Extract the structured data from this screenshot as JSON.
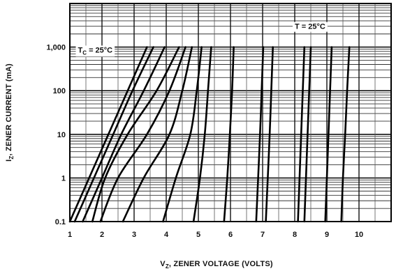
{
  "chart_data": {
    "type": "line",
    "title": "",
    "xlabel_prefix": "V",
    "xlabel_sub": "Z",
    "xlabel_rest": ", ZENER VOLTAGE (VOLTS)",
    "ylabel_prefix": "I",
    "ylabel_sub": "Z",
    "ylabel_rest": ", ZENER CURRENT (mA)",
    "x_scale": "linear",
    "y_scale": "log",
    "xlim": [
      1,
      11
    ],
    "ylim": [
      0.1,
      10000
    ],
    "x_ticks": [
      "1",
      "2",
      "3",
      "4",
      "5",
      "6",
      "7",
      "8",
      "9",
      "10"
    ],
    "y_ticks": [
      "0.1",
      "1",
      "10",
      "100",
      "1,000"
    ],
    "y_tick_values": [
      0.1,
      1,
      10,
      100,
      1000
    ],
    "grid": true,
    "annotations": [
      {
        "prefix": "T",
        "sub": "C",
        "rest": " = 25°C",
        "x": 1.25,
        "y": 750
      },
      {
        "prefix": "T = 25°C",
        "sub": "",
        "rest": "",
        "x": 8.0,
        "y": 2600
      }
    ],
    "series": [
      {
        "points": [
          [
            1.0,
            0.1
          ],
          [
            1.6,
            1
          ],
          [
            2.2,
            10
          ],
          [
            2.8,
            100
          ],
          [
            3.4,
            1000
          ]
        ]
      },
      {
        "points": [
          [
            1.15,
            0.1
          ],
          [
            1.75,
            1
          ],
          [
            2.35,
            10
          ],
          [
            2.95,
            100
          ],
          [
            3.6,
            1000
          ]
        ]
      },
      {
        "points": [
          [
            1.4,
            0.1
          ],
          [
            2.0,
            1
          ],
          [
            2.6,
            10
          ],
          [
            3.3,
            100
          ],
          [
            3.95,
            1000
          ]
        ]
      },
      {
        "points": [
          [
            1.7,
            0.1
          ],
          [
            2.1,
            1
          ],
          [
            2.8,
            10
          ],
          [
            3.7,
            100
          ],
          [
            4.4,
            1000
          ]
        ]
      },
      {
        "points": [
          [
            1.95,
            0.1
          ],
          [
            2.5,
            1
          ],
          [
            3.4,
            10
          ],
          [
            4.1,
            100
          ],
          [
            4.6,
            1000
          ]
        ]
      },
      {
        "points": [
          [
            2.65,
            0.1
          ],
          [
            3.3,
            1
          ],
          [
            4.1,
            10
          ],
          [
            4.5,
            100
          ],
          [
            4.8,
            1000
          ]
        ]
      },
      {
        "points": [
          [
            3.9,
            0.1
          ],
          [
            4.3,
            1
          ],
          [
            4.75,
            10
          ],
          [
            4.95,
            100
          ],
          [
            5.1,
            1000
          ]
        ]
      },
      {
        "points": [
          [
            4.85,
            0.1
          ],
          [
            5.05,
            1
          ],
          [
            5.2,
            10
          ],
          [
            5.3,
            100
          ],
          [
            5.4,
            1000
          ]
        ]
      },
      {
        "points": [
          [
            5.8,
            0.1
          ],
          [
            5.9,
            1
          ],
          [
            5.98,
            10
          ],
          [
            6.05,
            100
          ],
          [
            6.1,
            1000
          ]
        ]
      },
      {
        "points": [
          [
            6.8,
            0.1
          ],
          [
            6.86,
            1
          ],
          [
            6.92,
            10
          ],
          [
            6.97,
            100
          ],
          [
            7.02,
            1000
          ]
        ]
      },
      {
        "points": [
          [
            7.1,
            0.1
          ],
          [
            7.16,
            1
          ],
          [
            7.22,
            10
          ],
          [
            7.27,
            100
          ],
          [
            7.32,
            1000
          ]
        ]
      },
      {
        "points": [
          [
            8.1,
            0.1
          ],
          [
            8.15,
            1
          ],
          [
            8.2,
            10
          ],
          [
            8.25,
            100
          ],
          [
            8.3,
            1000
          ]
        ]
      },
      {
        "points": [
          [
            8.3,
            0.1
          ],
          [
            8.35,
            1
          ],
          [
            8.4,
            10
          ],
          [
            8.45,
            100
          ],
          [
            8.5,
            1000
          ]
        ]
      },
      {
        "points": [
          [
            8.95,
            0.1
          ],
          [
            9.0,
            1
          ],
          [
            9.05,
            10
          ],
          [
            9.1,
            100
          ],
          [
            9.15,
            1000
          ]
        ]
      },
      {
        "points": [
          [
            9.45,
            0.1
          ],
          [
            9.5,
            1
          ],
          [
            9.57,
            10
          ],
          [
            9.63,
            100
          ],
          [
            9.7,
            1000
          ]
        ]
      }
    ]
  }
}
